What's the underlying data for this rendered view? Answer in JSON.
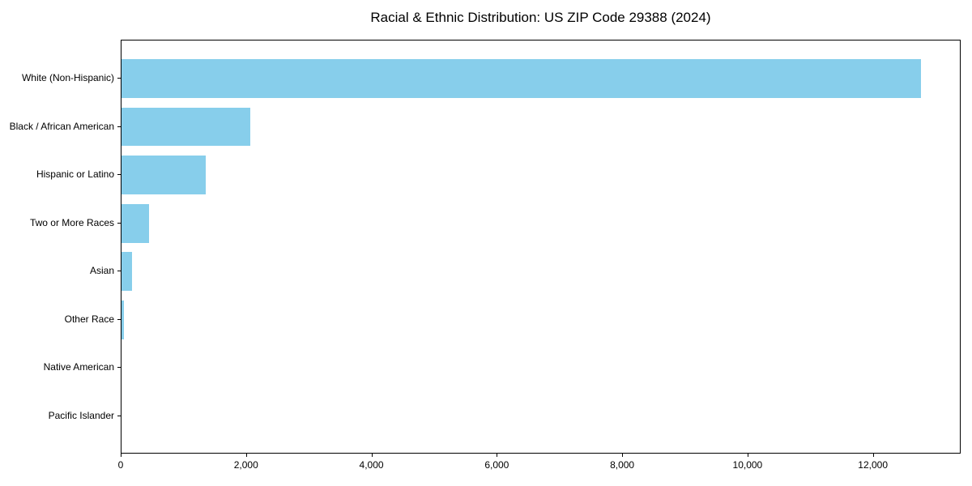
{
  "title": "Racial & Ethnic Distribution: US ZIP Code 29388 (2024)",
  "colors": {
    "bar": "#87ceeb",
    "axis": "#000000",
    "text": "#000000",
    "background": "#ffffff"
  },
  "chart_data": {
    "type": "bar",
    "orientation": "horizontal",
    "title": "Racial & Ethnic Distribution: US ZIP Code 29388 (2024)",
    "categories": [
      "White (Non-Hispanic)",
      "Black / African American",
      "Hispanic or Latino",
      "Two or More Races",
      "Asian",
      "Other Race",
      "Native American",
      "Pacific Islander"
    ],
    "values": [
      12760,
      2060,
      1350,
      445,
      170,
      40,
      0,
      0
    ],
    "xlabel": "",
    "ylabel": "",
    "xlim": [
      0,
      13400
    ],
    "xticks": [
      0,
      2000,
      4000,
      6000,
      8000,
      10000,
      12000
    ],
    "xtick_labels": [
      "0",
      "2,000",
      "4,000",
      "6,000",
      "8,000",
      "10,000",
      "12,000"
    ],
    "grid": false,
    "legend_position": "none",
    "bar_color": "#87ceeb",
    "bar_relative_height": 0.8
  }
}
